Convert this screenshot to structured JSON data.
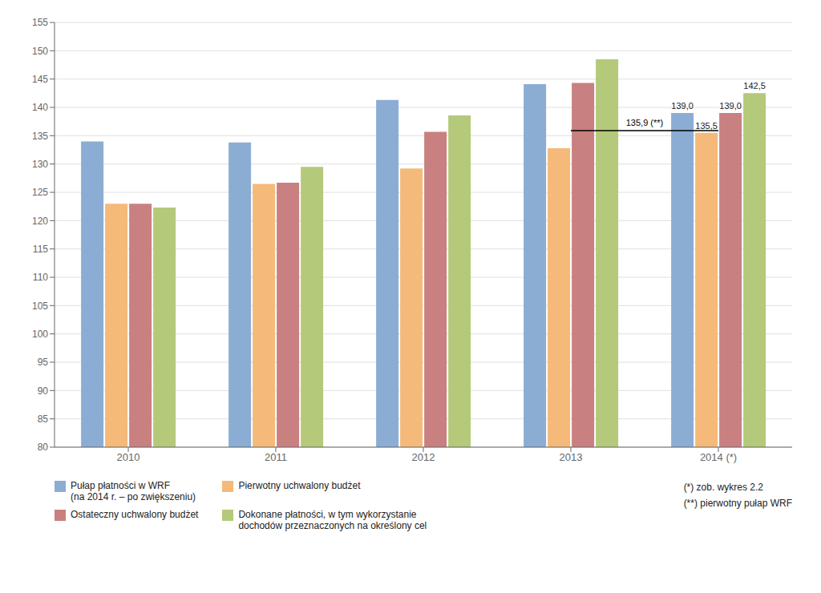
{
  "chart_data": {
    "type": "bar",
    "categories": [
      "2010",
      "2011",
      "2012",
      "2013",
      "2014 (*)"
    ],
    "series": [
      {
        "name": "Pułap płatności w WRF\n(na 2014 r. – po zwiększeniu)",
        "color": "#8BADD4",
        "values": [
          134.0,
          133.8,
          141.3,
          144.1,
          139.0
        ],
        "value_labels": [
          null,
          null,
          null,
          null,
          "139,0"
        ]
      },
      {
        "name": "Pierwotny uchwalony budżet",
        "color": "#F5B97A",
        "values": [
          123.0,
          126.5,
          129.2,
          132.8,
          135.5
        ],
        "value_labels": [
          null,
          null,
          null,
          null,
          "135,5"
        ]
      },
      {
        "name": "Ostateczny uchwalony budżet",
        "color": "#C98080",
        "values": [
          123.0,
          126.7,
          135.7,
          144.3,
          139.0
        ],
        "value_labels": [
          null,
          null,
          null,
          null,
          "139,0"
        ]
      },
      {
        "name": "Dokonane płatności, w tym wykorzystanie\ndochodów przeznaczonych na określony cel",
        "color": "#B5C97A",
        "values": [
          122.3,
          129.5,
          138.6,
          148.5,
          142.5
        ],
        "value_labels": [
          null,
          null,
          null,
          null,
          "142,5"
        ]
      }
    ],
    "ylim": [
      80,
      155
    ],
    "yticks": [
      80,
      85,
      90,
      95,
      100,
      105,
      110,
      115,
      120,
      125,
      130,
      135,
      140,
      145,
      150,
      155
    ],
    "grid": true,
    "legend": "bottom left",
    "annotations": [
      {
        "text": "135,9 (**)",
        "y": 135.9,
        "x": [
          "2013",
          "2014 (*)"
        ]
      },
      {
        "text": "(*) zob. wykres 2.2"
      },
      {
        "text": "(**) pierwotny pułap WRF"
      }
    ]
  }
}
